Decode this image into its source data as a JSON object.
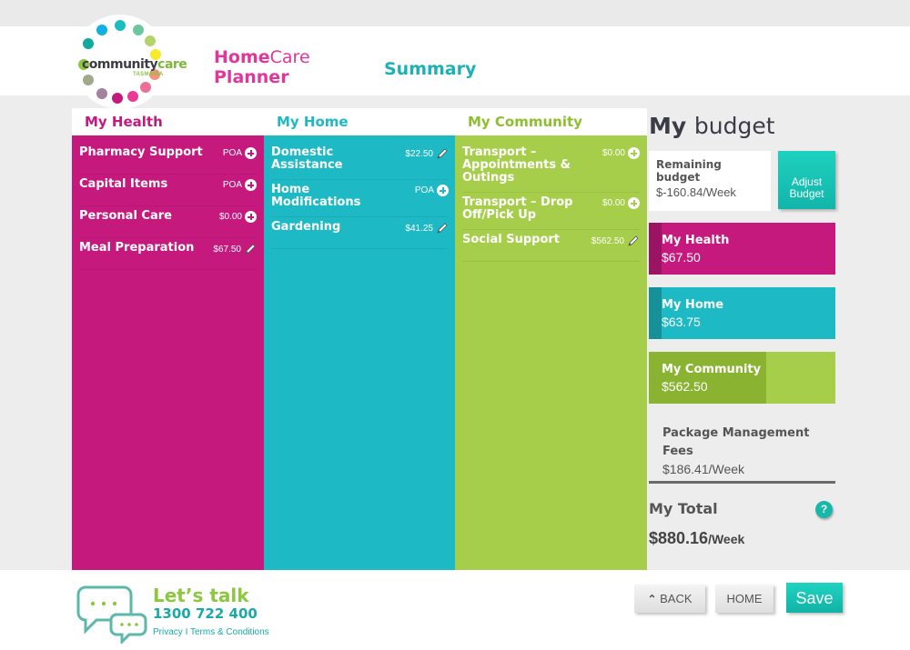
{
  "header": {
    "logo": {
      "name_main": "community",
      "name_accent": "care",
      "region": "TASMANIA"
    },
    "app_title": {
      "line1_bold": "Home",
      "line1_light": "Care",
      "line2": "Planner"
    },
    "page_title": "Summary"
  },
  "columns": [
    {
      "title": "My Health",
      "color": "#c5197d",
      "items": [
        {
          "name": "Pharmacy Support",
          "value": "POA",
          "action": "add"
        },
        {
          "name": "Capital Items",
          "value": "POA",
          "action": "add"
        },
        {
          "name": "Personal Care",
          "value": "$0.00",
          "action": "add"
        },
        {
          "name": "Meal Preparation",
          "value": "$67.50",
          "action": "edit"
        }
      ]
    },
    {
      "title": "My Home",
      "color": "#1dbac5",
      "items": [
        {
          "name": "Domestic Assistance",
          "value": "$22.50",
          "action": "edit"
        },
        {
          "name": "Home Modifications",
          "value": "POA",
          "action": "add"
        },
        {
          "name": "Gardening",
          "value": "$41.25",
          "action": "edit"
        }
      ]
    },
    {
      "title": "My Community",
      "color": "#a6ce4b",
      "items": [
        {
          "name": "Transport – Appointments & Outings",
          "value": "$0.00",
          "action": "add"
        },
        {
          "name": "Transport – Drop Off/Pick Up",
          "value": "$0.00",
          "action": "add"
        },
        {
          "name": "Social Support",
          "value": "$562.50",
          "action": "edit"
        }
      ]
    }
  ],
  "budget": {
    "title_bold": "My",
    "title_light": "budget",
    "remaining_label": "Remaining budget",
    "remaining_value": "$-160.84/Week",
    "adjust_button": "Adjust Budget",
    "bars": [
      {
        "label": "My Health",
        "value": "$67.50",
        "color": "#c5197d",
        "fill_color": "#9b1363",
        "fill_pct": 7
      },
      {
        "label": "My Home",
        "value": "$63.75",
        "color": "#1dbac5",
        "fill_color": "#16919a",
        "fill_pct": 7
      },
      {
        "label": "My Community",
        "value": "$562.50",
        "color": "#a6ce4b",
        "fill_color": "#8ab332",
        "fill_pct": 63
      }
    ],
    "package_fees_label": "Package Management Fees",
    "package_fees_value": "$186.41/Week",
    "total_label": "My Total",
    "total_value": "$880.16",
    "total_unit": "/Week",
    "help_icon": "?"
  },
  "footer": {
    "lets_talk": "Let’s talk",
    "phone": "1300 722 400",
    "privacy": "Privacy",
    "separator": "I",
    "terms": "Terms & Conditions",
    "back": "BACK",
    "home": "HOME",
    "save": "Save"
  }
}
